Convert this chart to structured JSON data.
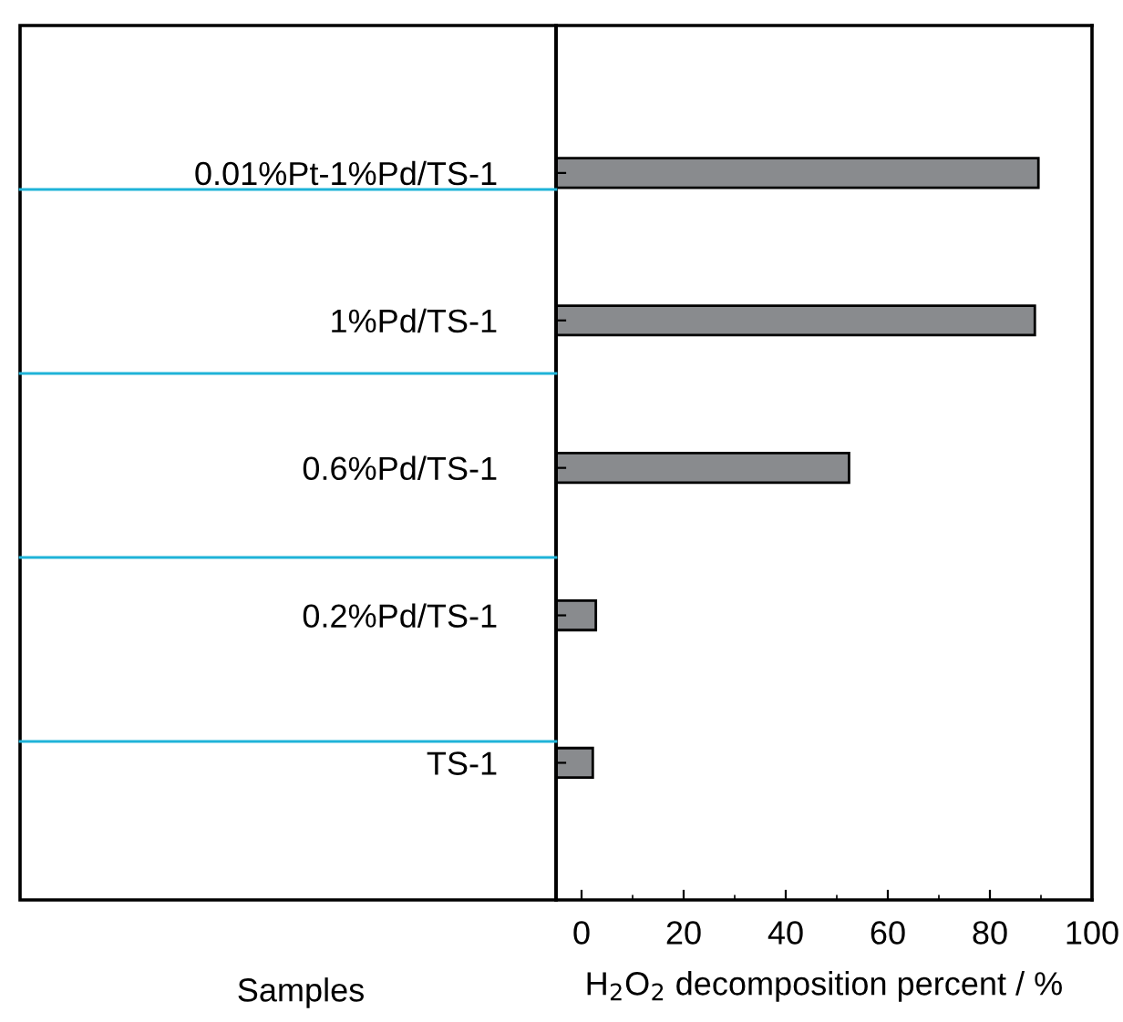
{
  "chart_data": {
    "type": "bar",
    "orientation": "horizontal",
    "categories": [
      "0.01%Pt-1%Pd/TS-1",
      "1%Pd/TS-1",
      "0.6%Pd/TS-1",
      "0.2%Pd/TS-1",
      "TS-1"
    ],
    "base": [
      -5,
      -5,
      -5,
      -5,
      -5
    ],
    "values": [
      94.5,
      93.8,
      57.4,
      7.8,
      7.2
    ],
    "color": "#898b8e",
    "xlim": [
      -5,
      100
    ],
    "xticks": [
      0,
      20,
      40,
      60,
      80,
      100
    ],
    "xlabel": "H$_{2}$O$_{2}$ decomposition percent / %",
    "ylabel": "Samples",
    "grid": false
  }
}
